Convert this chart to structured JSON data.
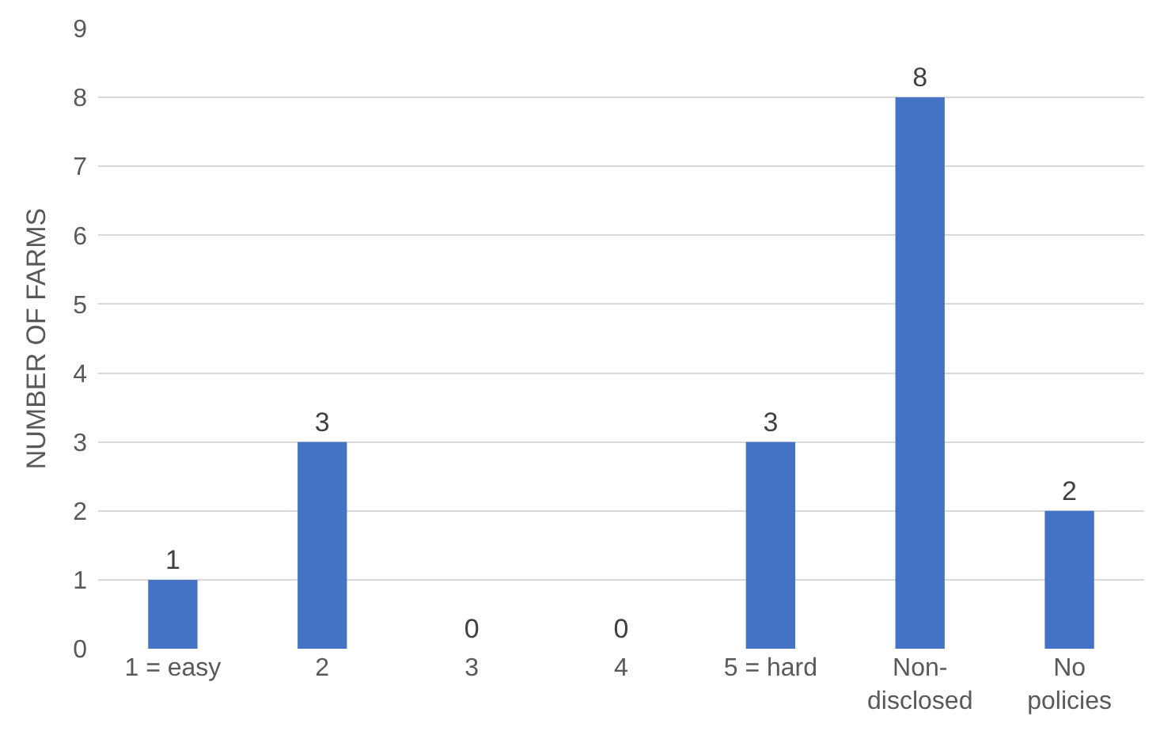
{
  "chart_data": {
    "type": "bar",
    "categories": [
      "1 = easy",
      "2",
      "3",
      "4",
      "5 = hard",
      "Non-\ndisclosed",
      "No\npolicies"
    ],
    "values": [
      1,
      3,
      0,
      0,
      3,
      8,
      2
    ],
    "color": "#4472c4",
    "ylabel": "NUMBER OF FARMS",
    "ylim": [
      0,
      9
    ],
    "yticks": [
      0,
      1,
      2,
      3,
      4,
      5,
      6,
      7,
      8,
      9
    ],
    "grid": "y",
    "data_labels": true
  }
}
